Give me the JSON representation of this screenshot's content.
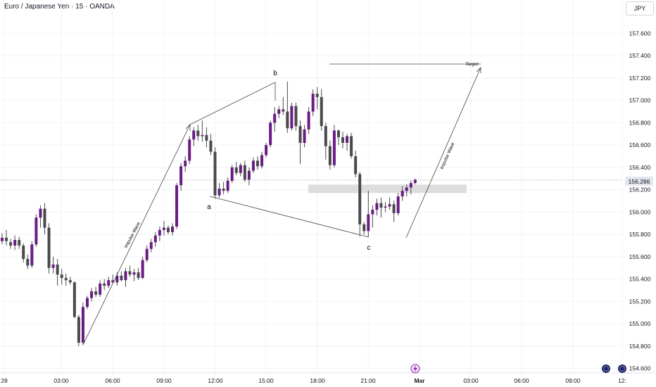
{
  "header": {
    "title": "Euro / Japanese Yen · 15 · OANDA",
    "currency_button": "JPY"
  },
  "colors": {
    "bull": "#6a1b84",
    "bear": "#4a4a4a",
    "wick": "#4a4a4a",
    "grid": "#f0f3fa",
    "price_line": "#9598a1",
    "zone": "#d9d9d9",
    "drawing": "#454545"
  },
  "price_axis": {
    "labels": [
      "157.600",
      "157.400",
      "157.200",
      "157.000",
      "156.800",
      "156.600",
      "156.400",
      "156.200",
      "156.000",
      "155.800",
      "155.600",
      "155.400",
      "155.200",
      "155.000",
      "154.800",
      "154.600"
    ],
    "current_price": "156.286"
  },
  "time_axis": {
    "labels": [
      "28",
      "03:00",
      "06:00",
      "09:00",
      "12:00",
      "15:00",
      "18:00",
      "21:00",
      "Mar",
      "03:00",
      "06:00",
      "09:00",
      "12:"
    ]
  },
  "annotations": {
    "a": "a",
    "b": "b",
    "c": "c",
    "target": "Target",
    "impulse_left": "Impulse Wave",
    "impulse_right": "Impulse Wave"
  },
  "chart_data": {
    "type": "candlestick",
    "title": "Euro / Japanese Yen · 15 · OANDA",
    "ylim": [
      154.55,
      157.78
    ],
    "current_price": 156.286,
    "time_ticks": [
      "28",
      "03:00",
      "06:00",
      "09:00",
      "12:00",
      "15:00",
      "18:00",
      "21:00",
      "Mar",
      "03:00",
      "06:00",
      "09:00",
      "12:"
    ],
    "price_ticks": [
      157.6,
      157.4,
      157.2,
      157.0,
      156.8,
      156.6,
      156.4,
      156.2,
      156.0,
      155.8,
      155.6,
      155.4,
      155.2,
      155.0,
      154.8,
      154.6
    ],
    "candles": [
      [
        155.74,
        155.81,
        155.71,
        155.77
      ],
      [
        155.77,
        155.84,
        155.7,
        155.74
      ],
      [
        155.73,
        155.76,
        155.67,
        155.7
      ],
      [
        155.7,
        155.79,
        155.66,
        155.75
      ],
      [
        155.75,
        155.78,
        155.67,
        155.7
      ],
      [
        155.7,
        155.72,
        155.55,
        155.58
      ],
      [
        155.58,
        155.62,
        155.49,
        155.52
      ],
      [
        155.52,
        155.74,
        155.5,
        155.71
      ],
      [
        155.71,
        155.98,
        155.69,
        155.95
      ],
      [
        155.95,
        156.06,
        155.86,
        156.03
      ],
      [
        156.03,
        156.08,
        155.8,
        155.86
      ],
      [
        155.86,
        155.9,
        155.45,
        155.5
      ],
      [
        155.5,
        155.6,
        155.45,
        155.53
      ],
      [
        155.53,
        155.58,
        155.34,
        155.44
      ],
      [
        155.44,
        155.49,
        155.35,
        155.41
      ],
      [
        155.41,
        155.45,
        155.34,
        155.39
      ],
      [
        155.39,
        155.42,
        155.35,
        155.37
      ],
      [
        155.37,
        155.38,
        155.05,
        155.06
      ],
      [
        155.06,
        155.08,
        154.8,
        154.83
      ],
      [
        154.83,
        155.19,
        154.81,
        155.15
      ],
      [
        155.15,
        155.25,
        155.13,
        155.23
      ],
      [
        155.23,
        155.32,
        155.2,
        155.29
      ],
      [
        155.29,
        155.33,
        155.24,
        155.26
      ],
      [
        155.26,
        155.39,
        155.24,
        155.36
      ],
      [
        155.36,
        155.4,
        155.3,
        155.34
      ],
      [
        155.34,
        155.42,
        155.32,
        155.39
      ],
      [
        155.39,
        155.44,
        155.36,
        155.37
      ],
      [
        155.37,
        155.46,
        155.34,
        155.43
      ],
      [
        155.43,
        155.47,
        155.38,
        155.39
      ],
      [
        155.39,
        155.5,
        155.33,
        155.47
      ],
      [
        155.47,
        155.52,
        155.42,
        155.44
      ],
      [
        155.44,
        155.49,
        155.38,
        155.46
      ],
      [
        155.46,
        155.5,
        155.39,
        155.41
      ],
      [
        155.41,
        155.6,
        155.4,
        155.57
      ],
      [
        155.57,
        155.7,
        155.55,
        155.67
      ],
      [
        155.67,
        155.76,
        155.64,
        155.73
      ],
      [
        155.73,
        155.82,
        155.69,
        155.79
      ],
      [
        155.79,
        155.87,
        155.74,
        155.84
      ],
      [
        155.84,
        155.92,
        155.79,
        155.86
      ],
      [
        155.86,
        155.88,
        155.8,
        155.82
      ],
      [
        155.82,
        155.9,
        155.79,
        155.87
      ],
      [
        155.87,
        156.26,
        155.85,
        156.24
      ],
      [
        156.24,
        156.44,
        156.19,
        156.41
      ],
      [
        156.41,
        156.5,
        156.36,
        156.46
      ],
      [
        156.46,
        156.68,
        156.43,
        156.65
      ],
      [
        156.65,
        156.76,
        156.59,
        156.73
      ],
      [
        156.73,
        156.78,
        156.64,
        156.68
      ],
      [
        156.68,
        156.82,
        156.63,
        156.69
      ],
      [
        156.69,
        156.76,
        156.58,
        156.64
      ],
      [
        156.64,
        156.7,
        156.51,
        156.54
      ],
      [
        156.54,
        156.58,
        156.12,
        156.15
      ],
      [
        156.15,
        156.26,
        156.13,
        156.21
      ],
      [
        156.21,
        156.27,
        156.16,
        156.19
      ],
      [
        156.19,
        156.31,
        156.17,
        156.28
      ],
      [
        156.28,
        156.42,
        156.26,
        156.4
      ],
      [
        156.4,
        156.45,
        156.33,
        156.35
      ],
      [
        156.35,
        156.44,
        156.32,
        156.42
      ],
      [
        156.42,
        156.46,
        156.27,
        156.29
      ],
      [
        156.29,
        156.4,
        156.24,
        156.37
      ],
      [
        156.37,
        156.49,
        156.35,
        156.46
      ],
      [
        156.46,
        156.5,
        156.38,
        156.41
      ],
      [
        156.41,
        156.54,
        156.39,
        156.51
      ],
      [
        156.51,
        156.62,
        156.49,
        156.6
      ],
      [
        156.6,
        156.82,
        156.58,
        156.8
      ],
      [
        156.8,
        156.94,
        156.72,
        156.88
      ],
      [
        156.88,
        156.95,
        156.84,
        156.92
      ],
      [
        156.92,
        157.03,
        156.87,
        156.9
      ],
      [
        156.9,
        157.17,
        156.71,
        156.75
      ],
      [
        156.75,
        156.98,
        156.73,
        156.95
      ],
      [
        156.95,
        156.98,
        156.73,
        156.77
      ],
      [
        156.77,
        156.82,
        156.43,
        156.62
      ],
      [
        156.62,
        156.78,
        156.58,
        156.74
      ],
      [
        156.74,
        156.94,
        156.7,
        156.9
      ],
      [
        156.9,
        157.1,
        156.86,
        157.06
      ],
      [
        157.06,
        157.12,
        156.92,
        157.03
      ],
      [
        157.03,
        157.1,
        156.73,
        156.77
      ],
      [
        156.77,
        156.8,
        156.47,
        156.59
      ],
      [
        156.59,
        156.64,
        156.38,
        156.42
      ],
      [
        156.42,
        156.78,
        156.4,
        156.73
      ],
      [
        156.73,
        156.74,
        156.6,
        156.67
      ],
      [
        156.67,
        156.72,
        156.57,
        156.62
      ],
      [
        156.62,
        156.7,
        156.55,
        156.68
      ],
      [
        156.68,
        156.71,
        156.48,
        156.5
      ],
      [
        156.5,
        156.55,
        156.31,
        156.34
      ],
      [
        156.34,
        156.36,
        155.78,
        155.89
      ],
      [
        155.89,
        155.91,
        155.8,
        155.83
      ],
      [
        155.83,
        156.19,
        155.78,
        155.98
      ],
      [
        155.98,
        156.06,
        155.86,
        156.02
      ],
      [
        156.02,
        156.12,
        155.97,
        156.08
      ],
      [
        156.08,
        156.13,
        155.95,
        156.04
      ],
      [
        156.04,
        156.09,
        156.0,
        156.05
      ],
      [
        156.05,
        156.13,
        156.02,
        156.07
      ],
      [
        156.07,
        156.1,
        155.91,
        155.99
      ],
      [
        155.99,
        156.17,
        155.97,
        156.14
      ],
      [
        156.14,
        156.23,
        156.1,
        156.19
      ],
      [
        156.19,
        156.25,
        156.14,
        156.22
      ],
      [
        156.22,
        156.28,
        156.16,
        156.26
      ],
      [
        156.26,
        156.3,
        156.25,
        156.29
      ]
    ]
  }
}
